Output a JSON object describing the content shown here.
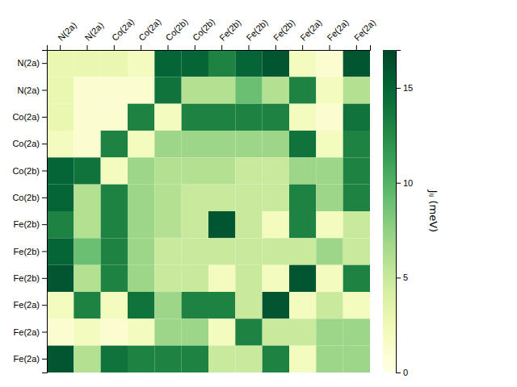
{
  "chart_data": {
    "type": "heatmap",
    "categories": [
      "N(2a)",
      "N(2a)",
      "Co(2a)",
      "Co(2a)",
      "Co(2b)",
      "Co(2b)",
      "Fe(2b)",
      "Fe(2b)",
      "Fe(2b)",
      "Fe(2a)",
      "Fe(2a)",
      "Fe(2a)"
    ],
    "values": [
      [
        3,
        3,
        3,
        2,
        15,
        15,
        13,
        15,
        16,
        2,
        1,
        16
      ],
      [
        3,
        1,
        1,
        1,
        14,
        6,
        6,
        9,
        6,
        13,
        2,
        6
      ],
      [
        3,
        1,
        1,
        13,
        2,
        13,
        13,
        13,
        13,
        2,
        1,
        14
      ],
      [
        2,
        1,
        13,
        2,
        7,
        7,
        7,
        7,
        7,
        14,
        2,
        13
      ],
      [
        15,
        14,
        2,
        7,
        6,
        6,
        6,
        5,
        5,
        7,
        7,
        13
      ],
      [
        15,
        6,
        13,
        7,
        6,
        5,
        5,
        5,
        5,
        13,
        7,
        13
      ],
      [
        13,
        6,
        13,
        7,
        6,
        5,
        16,
        5,
        2,
        13,
        2,
        5
      ],
      [
        15,
        9,
        13,
        7,
        5,
        5,
        5,
        5,
        5,
        5,
        7,
        5
      ],
      [
        16,
        6,
        13,
        7,
        5,
        5,
        2,
        5,
        2,
        16,
        2,
        13
      ],
      [
        2,
        13,
        2,
        14,
        7,
        13,
        13,
        5,
        16,
        2,
        5,
        2
      ],
      [
        1,
        2,
        1,
        2,
        7,
        7,
        2,
        13,
        5,
        5,
        7,
        7
      ],
      [
        16,
        6,
        14,
        13,
        13,
        13,
        5,
        5,
        13,
        2,
        7,
        7
      ]
    ],
    "color": "YlGn",
    "color_range": [
      0,
      17
    ],
    "color_ticks": [
      0,
      5,
      10,
      15
    ],
    "color_label": "Jᵢⱼ (meV)"
  }
}
